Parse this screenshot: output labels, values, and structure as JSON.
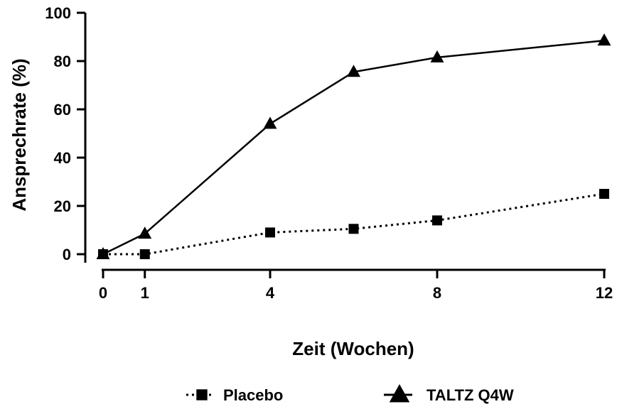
{
  "chart_data": {
    "type": "line",
    "title": "",
    "xlabel": "Zeit (Wochen)",
    "ylabel": "Ansprechrate (%)",
    "xlim": [
      0,
      12
    ],
    "ylim": [
      0,
      100
    ],
    "x_ticks": [
      0,
      1,
      4,
      8,
      12
    ],
    "y_ticks": [
      0,
      20,
      40,
      60,
      80,
      100
    ],
    "grid": false,
    "legend_position": "bottom",
    "series": [
      {
        "name": "Placebo",
        "marker": "square",
        "line_style": "dotted",
        "color": "#000000",
        "x": [
          0,
          1,
          4,
          6,
          8,
          12
        ],
        "y": [
          0,
          0,
          9,
          10.5,
          14,
          25
        ]
      },
      {
        "name": "TALTZ Q4W",
        "marker": "triangle",
        "line_style": "solid",
        "color": "#000000",
        "x": [
          0,
          1,
          4,
          6,
          8,
          12
        ],
        "y": [
          0,
          8.5,
          54,
          75.5,
          81.5,
          88.5
        ]
      }
    ]
  }
}
